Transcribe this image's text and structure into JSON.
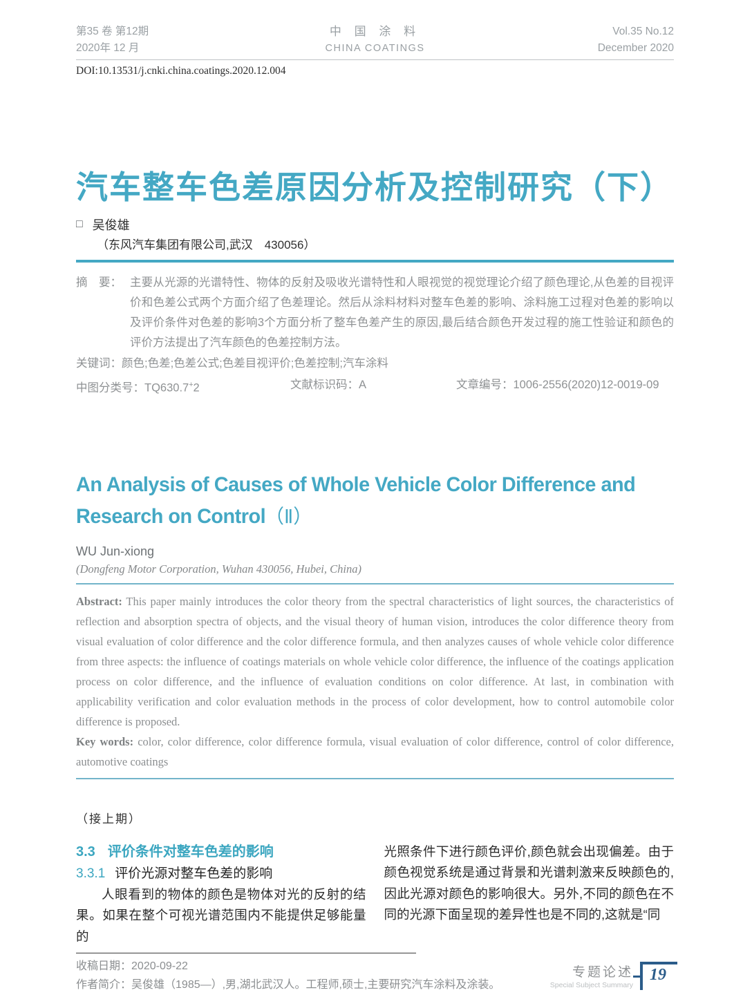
{
  "header": {
    "left_line1": "第35 卷  第12期",
    "left_line2": "2020年 12 月",
    "center_line1": "中 国 涂 料",
    "center_line2": "CHINA COATINGS",
    "right_line1": "Vol.35  No.12",
    "right_line2": "December 2020",
    "doi": "DOI:10.13531/j.cnki.china.coatings.2020.12.004"
  },
  "article": {
    "title_cn": "汽车整车色差原因分析及控制研究（下）",
    "author_marker": "□",
    "author_cn": "吴俊雄",
    "affiliation_cn": "（东风汽车集团有限公司,武汉　430056）",
    "abstract_cn_label": "摘　要：",
    "abstract_cn": "主要从光源的光谱特性、物体的反射及吸收光谱特性和人眼视觉的视觉理论介绍了颜色理论,从色差的目视评价和色差公式两个方面介绍了色差理论。然后从涂料材料对整车色差的影响、涂料施工过程对色差的影响以及评价条件对色差的影响3个方面分析了整车色差产生的原因,最后结合颜色开发过程的施工性验证和颜色的评价方法提出了汽车颜色的色差控制方法。",
    "keywords_cn_label": "关键词：",
    "keywords_cn": "颜色;色差;色差公式;色差目视评价;色差控制;汽车涂料",
    "clc_label": "中图分类号：",
    "clc_value": "TQ630.7",
    "clc_sup": "+",
    "clc_tail": "2",
    "doc_code_label": "文献标识码：",
    "doc_code_value": "A",
    "article_id_label": "文章编号：",
    "article_id_value": "1006-2556(2020)12-0019-09",
    "title_en_line1": "An Analysis of Causes of Whole Vehicle Color Difference and",
    "title_en_line2": "Research on Control",
    "title_en_suffix": "（Ⅱ）",
    "author_en": "WU Jun-xiong",
    "affiliation_en": "(Dongfeng Motor Corporation, Wuhan 430056, Hubei, China)",
    "abstract_en_label": "Abstract:",
    "abstract_en": "This paper mainly introduces the color theory from the spectral characteristics of light sources, the characteristics of reflection and absorption spectra of objects, and the visual theory of human vision, introduces the color difference theory from visual evaluation of color difference and the color difference formula, and then analyzes causes of whole vehicle color difference from three aspects: the influence of coatings materials on whole vehicle color difference, the influence of the coatings application process on color difference, and the influence of evaluation conditions on color difference. At last, in combination with applicability verification and color evaluation methods in the process of color development, how to control automobile color difference is proposed.",
    "keywords_en_label": "Key words:",
    "keywords_en": "color, color difference, color difference formula, visual evaluation of color difference, control of color difference, automotive coatings"
  },
  "body": {
    "continued_note": "（接上期）",
    "section_num": "3.3",
    "section_title": "评价条件对整车色差的影响",
    "subsection_num": "3.3.1",
    "subsection_title": "评价光源对整车色差的影响",
    "left_col_text": "人眼看到的物体的颜色是物体对光的反射的结果。如果在整个可视光谱范围内不能提供足够能量的",
    "right_col_text": "光照条件下进行颜色评价,颜色就会出现偏差。由于颜色视觉系统是通过背景和光谱刺激来反映颜色的,因此光源对颜色的影响很大。另外,不同的颜色在不同的光源下面呈现的差异性也是不同的,这就是“同"
  },
  "footnote": {
    "received_label": "收稿日期：",
    "received_value": "2020-09-22",
    "bio_label": "作者简介：",
    "bio_value": "吴俊雄（1985—）,男,湖北武汉人。工程师,硕士,主要研究汽车涂料及涂装。"
  },
  "page_footer": {
    "column_cn": "专题论述",
    "column_en": "Special Subject Summary",
    "page_number": "19"
  },
  "colors": {
    "accent_teal": "#44a8c4",
    "meta_gray": "#8f9294",
    "navy": "#2b5c8a"
  }
}
